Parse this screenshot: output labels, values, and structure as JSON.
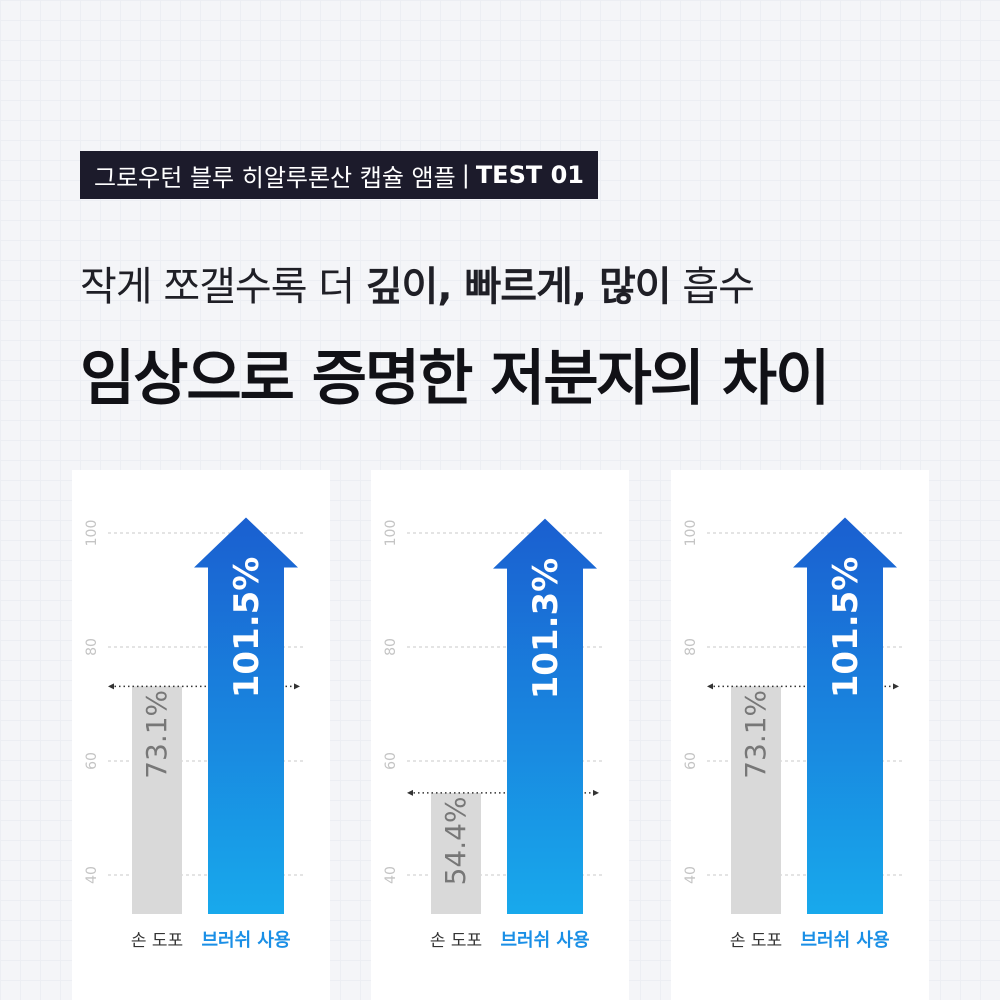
{
  "badge": {
    "product": "그로우턴 블루 히알루론산 캡슐 앰플",
    "separator": "|",
    "test": "TEST 01"
  },
  "subtitle": {
    "plain": "작게 쪼갤수록 더 ",
    "bold": "깊이, 빠르게, 많이",
    "tail": " 흡수"
  },
  "title": "임상으로 증명한 저분자의 차이",
  "colors": {
    "accent": "#1a8fe6",
    "accent_dark": "#1a5fd0",
    "accent_light": "#18a9ec",
    "gray_bar": "#d9d9d9",
    "dark": "#1c1b2b"
  },
  "chart_data": [
    {
      "type": "bar",
      "categories": [
        "손 도포",
        "브러쉬 사용"
      ],
      "values": [
        73.1,
        101.5
      ],
      "value_labels": [
        "73.1%",
        "101.5%"
      ],
      "y_ticks": [
        40,
        60,
        80,
        100
      ],
      "ylim": [
        36,
        105
      ],
      "grid": "dashed horizontal"
    },
    {
      "type": "bar",
      "categories": [
        "손 도포",
        "브러쉬 사용"
      ],
      "values": [
        54.4,
        101.3
      ],
      "value_labels": [
        "54.4%",
        "101.3%"
      ],
      "y_ticks": [
        40,
        60,
        80,
        100
      ],
      "ylim": [
        36,
        105
      ],
      "grid": "dashed horizontal"
    },
    {
      "type": "bar",
      "categories": [
        "손 도포",
        "브러쉬 사용"
      ],
      "values": [
        73.1,
        101.5
      ],
      "value_labels": [
        "73.1%",
        "101.5%"
      ],
      "y_ticks": [
        40,
        60,
        80,
        100
      ],
      "ylim": [
        36,
        105
      ],
      "grid": "dashed horizontal"
    }
  ]
}
